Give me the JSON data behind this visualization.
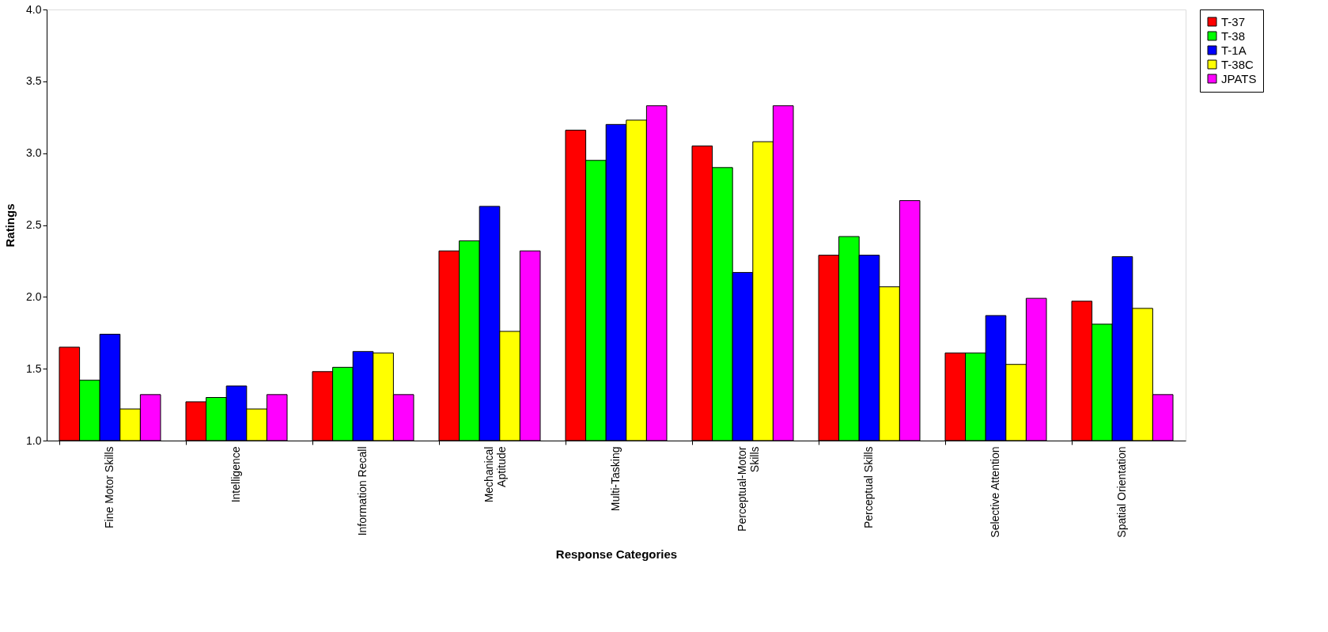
{
  "chart_data": {
    "type": "bar",
    "xlabel": "Response Categories",
    "ylabel": "Ratings",
    "categories": [
      "Fine Motor Skills",
      "Intelligence",
      "Information Recall",
      "Mechanical\nAptitude",
      "Multi-Tasking",
      "Perceptual-Motor\nSkills",
      "Perceptual Skills",
      "Selective Attention",
      "Spatial Orientation"
    ],
    "series": [
      {
        "name": "T-37",
        "color": "#ff0000",
        "values": [
          1.65,
          1.27,
          1.48,
          2.32,
          3.16,
          3.05,
          2.29,
          1.61,
          1.97
        ]
      },
      {
        "name": "T-38",
        "color": "#00ff00",
        "values": [
          1.42,
          1.3,
          1.51,
          2.39,
          2.95,
          2.9,
          2.42,
          1.61,
          1.81
        ]
      },
      {
        "name": "T-1A",
        "color": "#0000ff",
        "values": [
          1.74,
          1.38,
          1.62,
          2.63,
          3.2,
          2.17,
          2.29,
          1.87,
          2.28
        ]
      },
      {
        "name": "T-38C",
        "color": "#ffff00",
        "values": [
          1.22,
          1.22,
          1.61,
          1.76,
          3.23,
          3.08,
          2.07,
          1.53,
          1.92
        ]
      },
      {
        "name": "JPATS",
        "color": "#ff00ff",
        "values": [
          1.32,
          1.32,
          1.32,
          2.32,
          3.33,
          3.33,
          2.67,
          1.99,
          1.32
        ]
      }
    ],
    "ylim": [
      1.0,
      4.0
    ],
    "yticks": [
      {
        "value": 1.0,
        "label": "1.0"
      },
      {
        "value": 1.5,
        "label": "1.5"
      },
      {
        "value": 2.0,
        "label": "2.0"
      },
      {
        "value": 2.5,
        "label": "2.5"
      },
      {
        "value": 3.0,
        "label": "3.0"
      },
      {
        "value": 3.5,
        "label": "3.5"
      },
      {
        "value": 4.0,
        "label": "4.0"
      }
    ],
    "grid": false,
    "legend": "right"
  }
}
